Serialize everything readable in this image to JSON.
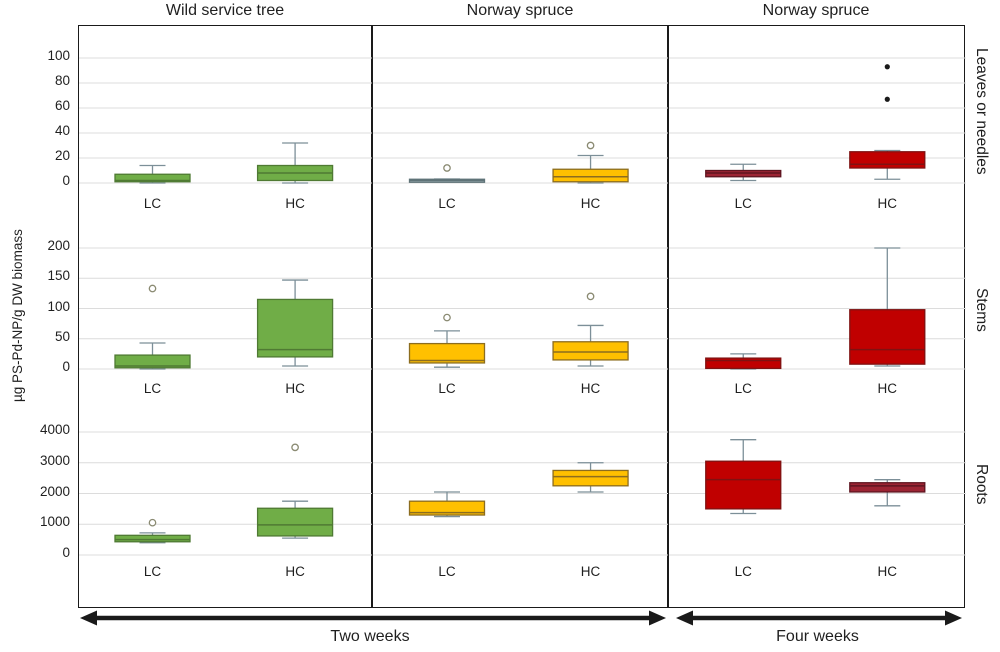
{
  "y_axis_label": "µg PS-Pd-NP/g DW biomass",
  "row_labels": [
    "Leaves or needles",
    "Stems",
    "Roots"
  ],
  "footer": {
    "two_weeks": "Two weeks",
    "four_weeks": "Four weeks"
  },
  "palette": {
    "green": "#70AD47",
    "yellow": "#FFC000",
    "red": "#C00000",
    "dark_red": "#9C2433",
    "slate": "#8C9EA3",
    "whisker": "#7C8F98",
    "gridline": "#dcdcdc",
    "outlier_ring": "#8a8a72",
    "outlier_dot": "#1a1a1a"
  },
  "chart_data": {
    "type": "box",
    "unit": "µg PS-Pd-NP/g DW biomass",
    "columns": [
      {
        "title": "Wild service tree",
        "period": "Two weeks",
        "panels": [
          {
            "tissue": "Leaves or needles",
            "yticks": [
              0,
              20,
              40,
              60,
              80,
              100
            ],
            "boxes": [
              {
                "label": "LC",
                "lo": 0,
                "q1": 1,
                "med": 2,
                "q3": 7,
                "hi": 14,
                "outliers": [],
                "fill": "#70AD47",
                "stroke": "#4F7A33",
                "outlier_style": "ring"
              },
              {
                "label": "HC",
                "lo": 0,
                "q1": 2,
                "med": 8,
                "q3": 14,
                "hi": 32,
                "outliers": [],
                "fill": "#70AD47",
                "stroke": "#4F7A33",
                "outlier_style": "ring"
              }
            ]
          },
          {
            "tissue": "Stems",
            "yticks": [
              0,
              50,
              100,
              150,
              200
            ],
            "boxes": [
              {
                "label": "LC",
                "lo": 0,
                "q1": 2,
                "med": 5,
                "q3": 23,
                "hi": 43,
                "outliers": [
                  133
                ],
                "fill": "#70AD47",
                "stroke": "#4F7A33",
                "outlier_style": "ring"
              },
              {
                "label": "HC",
                "lo": 5,
                "q1": 20,
                "med": 32,
                "q3": 115,
                "hi": 147,
                "outliers": [],
                "fill": "#70AD47",
                "stroke": "#4F7A33",
                "outlier_style": "ring"
              }
            ]
          },
          {
            "tissue": "Roots",
            "yticks": [
              0,
              1000,
              2000,
              3000,
              4000
            ],
            "boxes": [
              {
                "label": "LC",
                "lo": 400,
                "q1": 430,
                "med": 500,
                "q3": 640,
                "hi": 720,
                "outliers": [
                  1050
                ],
                "fill": "#70AD47",
                "stroke": "#4F7A33",
                "outlier_style": "ring"
              },
              {
                "label": "HC",
                "lo": 550,
                "q1": 620,
                "med": 980,
                "q3": 1520,
                "hi": 1750,
                "outliers": [
                  3500
                ],
                "fill": "#70AD47",
                "stroke": "#4F7A33",
                "outlier_style": "ring"
              }
            ]
          }
        ]
      },
      {
        "title": "Norway spruce",
        "period": "Two weeks",
        "panels": [
          {
            "tissue": "Leaves or needles",
            "yticks": [
              0,
              20,
              40,
              60,
              80,
              100
            ],
            "boxes": [
              {
                "label": "LC",
                "lo": 1.5,
                "q1": 1.8,
                "med": 2.2,
                "q3": 3,
                "hi": 3.2,
                "outliers": [
                  12
                ],
                "fill": "#8C9EA3",
                "stroke": "#5F7378",
                "outlier_style": "ring"
              },
              {
                "label": "HC",
                "lo": 0,
                "q1": 1,
                "med": 5,
                "q3": 11,
                "hi": 22,
                "outliers": [
                  30
                ],
                "fill": "#FFC000",
                "stroke": "#8C6D1F",
                "outlier_style": "ring"
              }
            ]
          },
          {
            "tissue": "Stems",
            "yticks": [
              0,
              50,
              100,
              150,
              200
            ],
            "boxes": [
              {
                "label": "LC",
                "lo": 3,
                "q1": 10,
                "med": 14,
                "q3": 42,
                "hi": 63,
                "outliers": [
                  85
                ],
                "fill": "#FFC000",
                "stroke": "#8C6D1F",
                "outlier_style": "ring"
              },
              {
                "label": "HC",
                "lo": 5,
                "q1": 15,
                "med": 28,
                "q3": 45,
                "hi": 72,
                "outliers": [
                  120
                ],
                "fill": "#FFC000",
                "stroke": "#8C6D1F",
                "outlier_style": "ring"
              }
            ]
          },
          {
            "tissue": "Roots",
            "yticks": [
              0,
              1000,
              2000,
              3000,
              4000
            ],
            "boxes": [
              {
                "label": "LC",
                "lo": 1250,
                "q1": 1300,
                "med": 1380,
                "q3": 1750,
                "hi": 2050,
                "outliers": [],
                "fill": "#FFC000",
                "stroke": "#8C6D1F",
                "outlier_style": "ring"
              },
              {
                "label": "HC",
                "lo": 2050,
                "q1": 2250,
                "med": 2550,
                "q3": 2750,
                "hi": 3000,
                "outliers": [],
                "fill": "#FFC000",
                "stroke": "#8C6D1F",
                "outlier_style": "ring"
              }
            ]
          }
        ]
      },
      {
        "title": "Norway spruce",
        "period": "Four weeks",
        "panels": [
          {
            "tissue": "Leaves or needles",
            "yticks": [
              0,
              20,
              40,
              60,
              80,
              100
            ],
            "boxes": [
              {
                "label": "LC",
                "lo": 2,
                "q1": 5,
                "med": 8,
                "q3": 10,
                "hi": 15,
                "outliers": [],
                "fill": "#9C2433",
                "stroke": "#5E1520",
                "outlier_style": "ring"
              },
              {
                "label": "HC",
                "lo": 3,
                "q1": 12,
                "med": 15,
                "q3": 25,
                "hi": 26,
                "outliers": [
                  67,
                  93
                ],
                "fill": "#C00000",
                "stroke": "#7F1212",
                "outlier_style": "dot"
              }
            ]
          },
          {
            "tissue": "Stems",
            "yticks": [
              0,
              50,
              100,
              150,
              200
            ],
            "boxes": [
              {
                "label": "LC",
                "lo": 0,
                "q1": 1,
                "med": 14,
                "q3": 18,
                "hi": 25,
                "outliers": [],
                "fill": "#C00000",
                "stroke": "#7F1212",
                "outlier_style": "ring"
              },
              {
                "label": "HC",
                "lo": 5,
                "q1": 8,
                "med": 32,
                "q3": 98,
                "hi": 200,
                "outliers": [],
                "fill": "#C00000",
                "stroke": "#7F1212",
                "outlier_style": "ring"
              }
            ]
          },
          {
            "tissue": "Roots",
            "yticks": [
              0,
              1000,
              2000,
              3000,
              4000
            ],
            "boxes": [
              {
                "label": "LC",
                "lo": 1350,
                "q1": 1500,
                "med": 2450,
                "q3": 3050,
                "hi": 3750,
                "outliers": [],
                "fill": "#C00000",
                "stroke": "#7F1212",
                "outlier_style": "ring"
              },
              {
                "label": "HC",
                "lo": 1600,
                "q1": 2050,
                "med": 2250,
                "q3": 2350,
                "hi": 2450,
                "outliers": [],
                "fill": "#9C2433",
                "stroke": "#5E1520",
                "outlier_style": "ring"
              }
            ]
          }
        ]
      }
    ]
  }
}
